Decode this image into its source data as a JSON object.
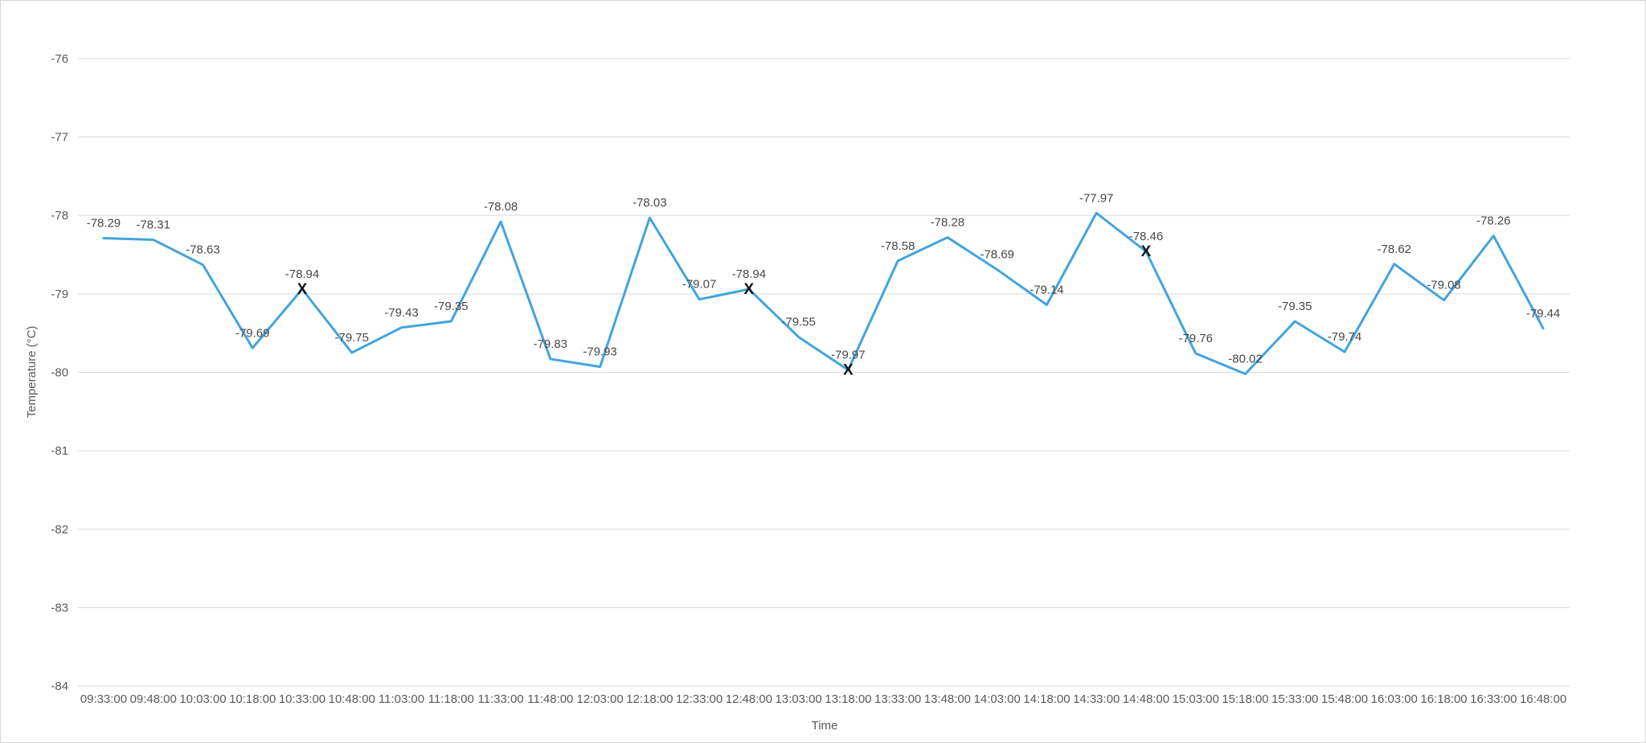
{
  "panel": {
    "background": "#ffffff",
    "border_color": "#d7d7d7"
  },
  "chart_data": {
    "type": "line",
    "title": "",
    "xlabel": "Time",
    "ylabel": "Temperature (°C)",
    "grid": true,
    "legend": false,
    "line_color": "#41a4dd",
    "grid_color": "#d9d9d9",
    "label_color": "#474747",
    "tick_color": "#595959",
    "marker_color": "#141414",
    "marker_glyph": "X",
    "marker_indices": [
      4,
      13,
      15,
      21
    ],
    "yticks": [
      -76,
      -77,
      -78,
      -79,
      -80,
      -81,
      -82,
      -83,
      -84
    ],
    "ylim": [
      -84,
      -76
    ],
    "x": [
      "09:33:00",
      "09:48:00",
      "10:03:00",
      "10:18:00",
      "10:33:00",
      "10:48:00",
      "11:03:00",
      "11:18:00",
      "11:33:00",
      "11:48:00",
      "12:03:00",
      "12:18:00",
      "12:33:00",
      "12:48:00",
      "13:03:00",
      "13:18:00",
      "13:33:00",
      "13:48:00",
      "14:03:00",
      "14:18:00",
      "14:33:00",
      "14:48:00",
      "15:03:00",
      "15:18:00",
      "15:33:00",
      "15:48:00",
      "16:03:00",
      "16:18:00",
      "16:33:00",
      "16:48:00"
    ],
    "series": [
      {
        "name": "Temperature",
        "values": [
          -78.29,
          -78.31,
          -78.63,
          -79.69,
          -78.94,
          -79.75,
          -79.43,
          -79.35,
          -78.08,
          -79.83,
          -79.93,
          -78.03,
          -79.07,
          -78.94,
          -79.55,
          -79.97,
          -78.58,
          -78.28,
          -78.69,
          -79.14,
          -77.97,
          -78.46,
          -79.76,
          -80.02,
          -79.35,
          -79.74,
          -78.62,
          -79.08,
          -78.26,
          -79.44
        ]
      }
    ]
  }
}
